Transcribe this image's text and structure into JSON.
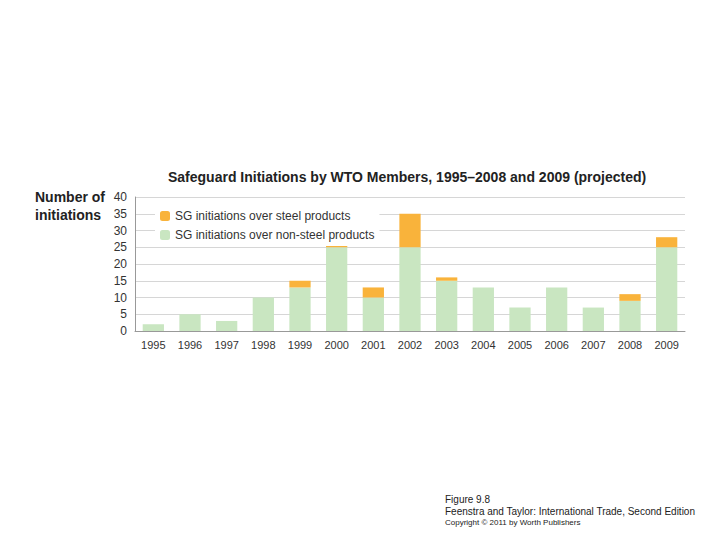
{
  "chart_data": {
    "type": "bar",
    "title": "Safeguard Initiations by WTO Members, 1995–2008 and 2009 (projected)",
    "y_label": "Number of\ninitiations",
    "categories": [
      "1995",
      "1996",
      "1997",
      "1998",
      "1999",
      "2000",
      "2001",
      "2002",
      "2003",
      "2004",
      "2005",
      "2006",
      "2007",
      "2008",
      "2009"
    ],
    "series": [
      {
        "name": "SG initiations over non-steel products",
        "color": "#c9e6c1",
        "values": [
          2,
          5,
          3,
          10,
          13,
          25,
          10,
          25,
          15,
          13,
          7,
          13,
          7,
          9,
          25
        ]
      },
      {
        "name": "SG initiations over steel products",
        "color": "#f9b33b",
        "values": [
          0,
          0,
          0,
          0,
          2,
          2,
          3,
          10,
          1,
          0,
          0,
          0,
          0,
          2,
          3
        ]
      }
    ],
    "stacked": true,
    "ylim": [
      0,
      40
    ],
    "yticks": [
      0,
      5,
      10,
      15,
      20,
      25,
      30,
      35,
      40
    ],
    "grid": true,
    "legend": "upper left",
    "annotations": [
      "Figure 9.8",
      "Feenstra and Taylor: International Trade, Second Edition",
      "Copyright © 2011 by Worth Publishers"
    ]
  }
}
